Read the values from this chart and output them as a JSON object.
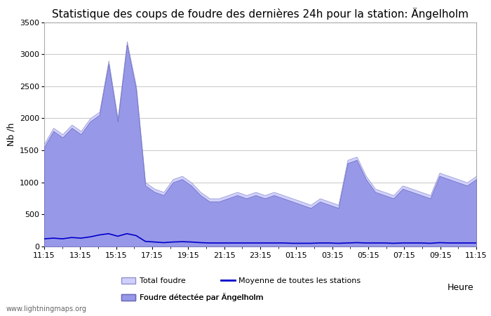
{
  "title": "Statistique des coups de foudre des dernières 24h pour la station: Ängelholm",
  "xlabel": "Heure",
  "ylabel": "Nb /h",
  "xlim_labels": [
    "11:15",
    "13:15",
    "15:15",
    "17:15",
    "19:15",
    "21:15",
    "23:15",
    "01:15",
    "03:15",
    "05:15",
    "07:15",
    "09:15",
    "11:15"
  ],
  "ylim": [
    0,
    3500
  ],
  "yticks": [
    0,
    500,
    1000,
    1500,
    2000,
    2500,
    3000,
    3500
  ],
  "watermark": "www.lightningmaps.org",
  "legend": [
    {
      "label": "Total foudre",
      "color": "#c8c8ff",
      "type": "fill"
    },
    {
      "label": "Moyenne de toutes les stations",
      "color": "#0000cc",
      "type": "line"
    },
    {
      "label": "Foudre détectée par Ängelholm",
      "color": "#9898e8",
      "type": "fill"
    }
  ],
  "total_foudre": [
    1600,
    1850,
    1750,
    1900,
    1800,
    2000,
    2100,
    2900,
    2000,
    3200,
    2500,
    1000,
    900,
    850,
    1050,
    1100,
    1000,
    850,
    750,
    750,
    800,
    850,
    800,
    850,
    800,
    850,
    800,
    750,
    700,
    650,
    750,
    700,
    650,
    1350,
    1400,
    1100,
    900,
    850,
    800,
    950,
    900,
    850,
    800,
    1150,
    1100,
    1050,
    1000,
    1100
  ],
  "foudre_angelholm": [
    1550,
    1800,
    1700,
    1850,
    1750,
    1950,
    2050,
    2850,
    1950,
    3150,
    2450,
    950,
    850,
    800,
    1000,
    1050,
    950,
    800,
    700,
    700,
    750,
    800,
    750,
    800,
    750,
    800,
    750,
    700,
    650,
    600,
    700,
    650,
    600,
    1300,
    1350,
    1050,
    850,
    800,
    750,
    900,
    850,
    800,
    750,
    1100,
    1050,
    1000,
    950,
    1050
  ],
  "moyenne_stations": [
    120,
    130,
    120,
    140,
    130,
    150,
    180,
    200,
    160,
    200,
    170,
    80,
    70,
    60,
    70,
    75,
    70,
    60,
    55,
    55,
    55,
    55,
    55,
    55,
    55,
    55,
    55,
    50,
    50,
    50,
    55,
    55,
    50,
    55,
    60,
    55,
    55,
    55,
    50,
    55,
    55,
    55,
    50,
    60,
    55,
    55,
    55,
    55
  ],
  "background_color": "#ffffff",
  "plot_bg_color": "#ffffff",
  "grid_color": "#cccccc",
  "total_fill_color": "#d0d0ff",
  "total_fill_edge_color": "#9090cc",
  "angelholm_fill_color": "#9898e8",
  "angelholm_fill_edge_color": "#6868bb",
  "line_color": "#0000cc",
  "title_fontsize": 11,
  "axis_fontsize": 9,
  "tick_fontsize": 8
}
